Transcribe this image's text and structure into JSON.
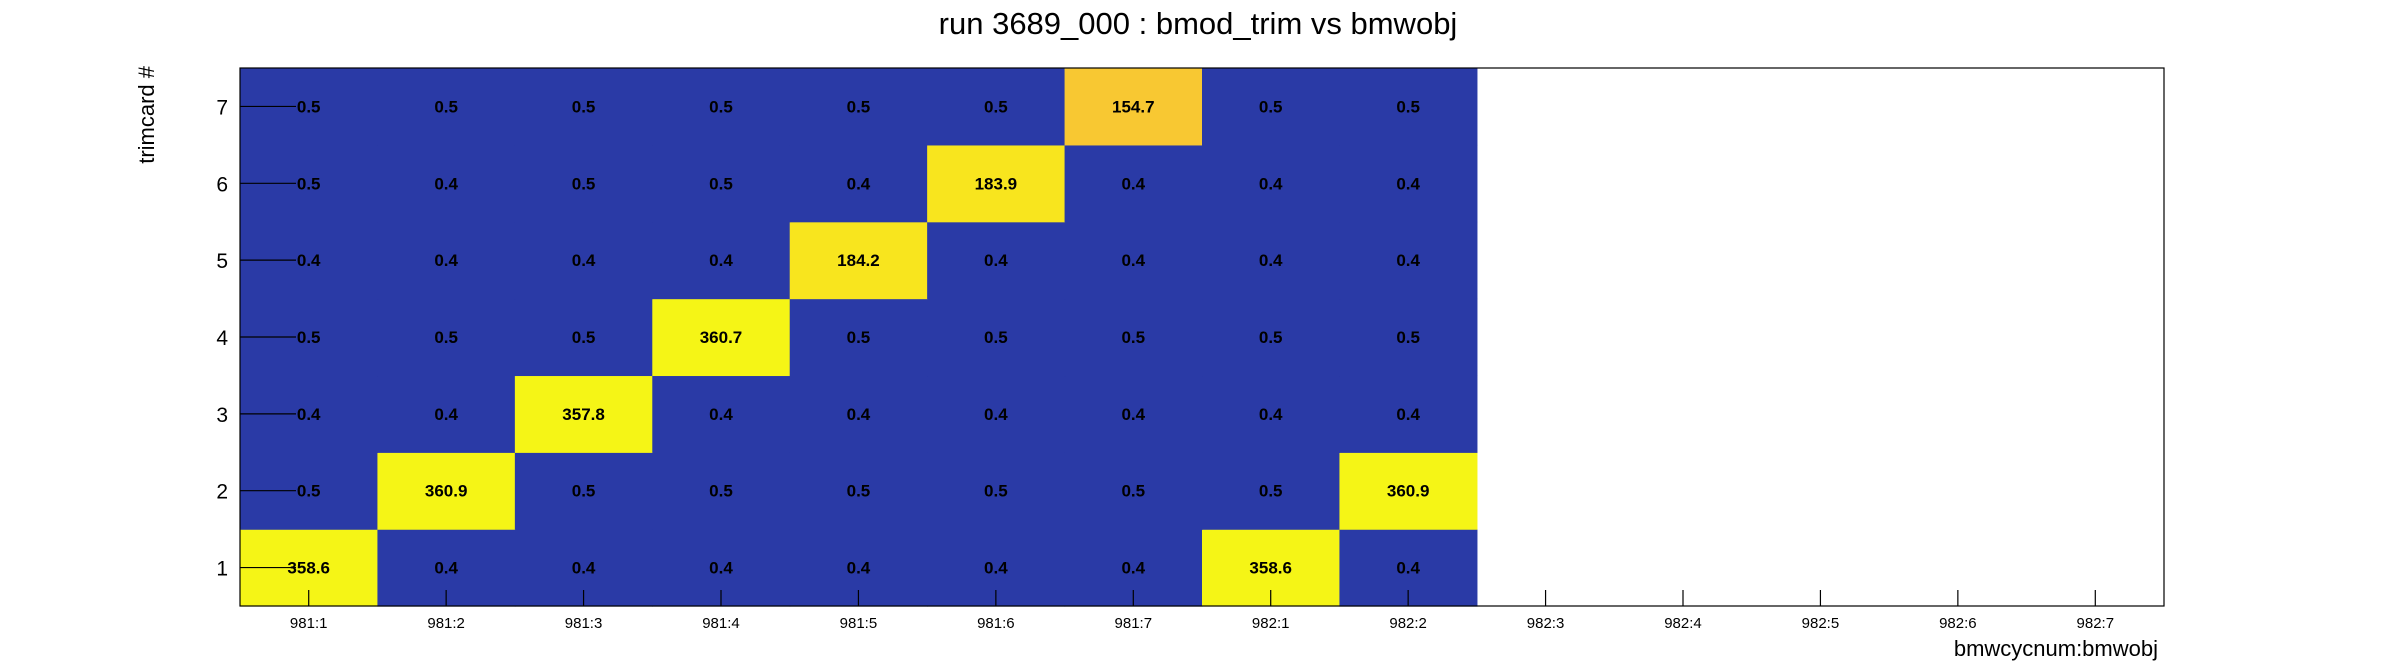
{
  "chart_data": {
    "type": "heatmap",
    "title": "run 3689_000 : bmod_trim vs bmwobj",
    "xlabel": "bmwcycnum:bmwobj",
    "ylabel": "trimcard #",
    "x_categories": [
      "981:1",
      "981:2",
      "981:3",
      "981:4",
      "981:5",
      "981:6",
      "981:7",
      "982:1",
      "982:2",
      "982:3",
      "982:4",
      "982:5",
      "982:6",
      "982:7"
    ],
    "y_categories": [
      "1",
      "2",
      "3",
      "4",
      "5",
      "6",
      "7"
    ],
    "values": [
      [
        358.6,
        0.4,
        0.4,
        0.4,
        0.4,
        0.4,
        0.4,
        358.6,
        0.4,
        null,
        null,
        null,
        null,
        null
      ],
      [
        0.5,
        360.9,
        0.5,
        0.5,
        0.5,
        0.5,
        0.5,
        0.5,
        360.9,
        null,
        null,
        null,
        null,
        null
      ],
      [
        0.4,
        0.4,
        357.8,
        0.4,
        0.4,
        0.4,
        0.4,
        0.4,
        0.4,
        null,
        null,
        null,
        null,
        null
      ],
      [
        0.5,
        0.5,
        0.5,
        360.7,
        0.5,
        0.5,
        0.5,
        0.5,
        0.5,
        null,
        null,
        null,
        null,
        null
      ],
      [
        0.4,
        0.4,
        0.4,
        0.4,
        184.2,
        0.4,
        0.4,
        0.4,
        0.4,
        null,
        null,
        null,
        null,
        null
      ],
      [
        0.5,
        0.4,
        0.5,
        0.5,
        0.4,
        183.9,
        0.4,
        0.4,
        0.4,
        null,
        null,
        null,
        null,
        null
      ],
      [
        0.5,
        0.5,
        0.5,
        0.5,
        0.5,
        0.5,
        154.7,
        0.5,
        0.5,
        null,
        null,
        null,
        null,
        null
      ]
    ],
    "colors": {
      "low": "#2a3aa6",
      "high_mid": "#f8e51e",
      "high_peak": "#f5f516",
      "high_low": "#f8c832"
    },
    "grid": false,
    "legend": "none"
  }
}
